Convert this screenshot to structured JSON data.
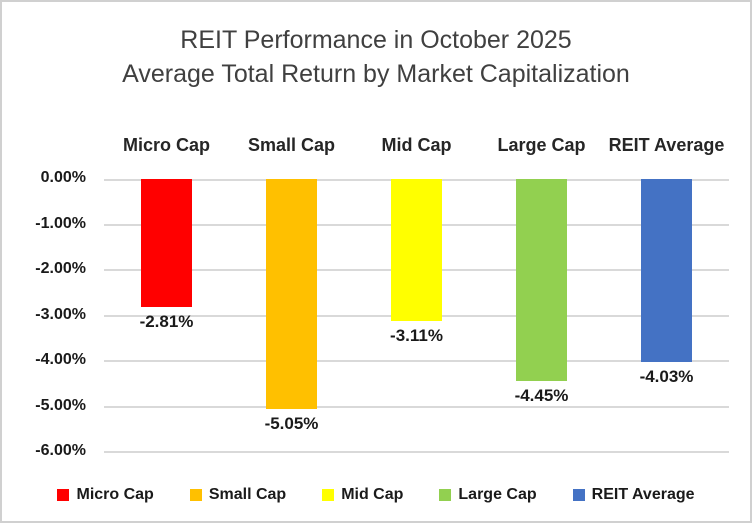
{
  "chart_data": {
    "type": "bar",
    "title": "REIT Performance in October 2025",
    "subtitle": "Average Total Return by Market Capitalization",
    "categories": [
      "Micro Cap",
      "Small Cap",
      "Mid Cap",
      "Large Cap",
      "REIT Average"
    ],
    "values": [
      -2.81,
      -5.05,
      -3.11,
      -4.45,
      -4.03
    ],
    "value_labels": [
      "-2.81%",
      "-5.05%",
      "-3.11%",
      "-4.45%",
      "-4.03%"
    ],
    "bar_colors": [
      "#ff0000",
      "#ffc000",
      "#ffff00",
      "#92d050",
      "#4472c4"
    ],
    "ylim": [
      0,
      -6
    ],
    "yticks": [
      0,
      -1,
      -2,
      -3,
      -4,
      -5,
      -6
    ],
    "ytick_labels": [
      "0.00%",
      "-1.00%",
      "-2.00%",
      "-3.00%",
      "-4.00%",
      "-5.00%",
      "-6.00%"
    ],
    "grid": true,
    "xlabel": "",
    "ylabel": "",
    "legend": {
      "position": "bottom",
      "entries": [
        "Micro Cap",
        "Small Cap",
        "Mid Cap",
        "Large Cap",
        "REIT Average"
      ]
    }
  },
  "colors": {
    "gridline": "#d9d9d9",
    "frame_border": "#d0d0d0",
    "title_text": "#404040",
    "label_text": "#1a1a1a"
  }
}
